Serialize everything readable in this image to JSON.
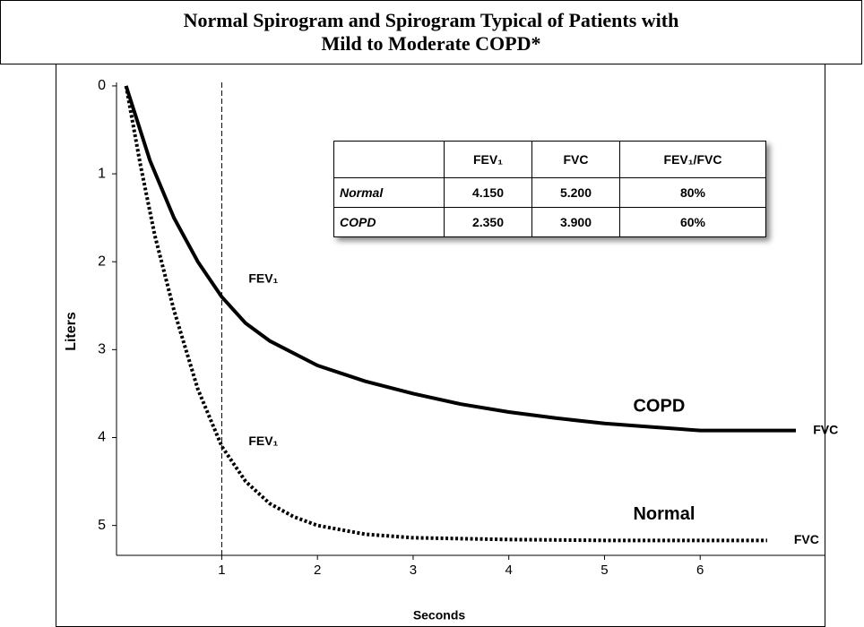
{
  "chart_data": {
    "type": "line",
    "title_lines": [
      "Normal Spirogram and Spirogram Typical of Patients with",
      "Mild to Moderate COPD*"
    ],
    "x_label": "Seconds",
    "y_label": "Liters",
    "xlim": [
      -0.1,
      7.3
    ],
    "ylim": [
      -0.04,
      5.34
    ],
    "y_inverted": true,
    "xticks": [
      1,
      2,
      3,
      4,
      5,
      6
    ],
    "yticks": [
      0,
      1,
      2,
      3,
      4,
      5
    ],
    "reference_line_x": 1,
    "series": [
      {
        "name": "COPD",
        "color": "#000000",
        "dash": "solid",
        "x": [
          0,
          0.25,
          0.5,
          0.75,
          1,
          1.25,
          1.5,
          2,
          2.5,
          3,
          3.5,
          4,
          4.5,
          5,
          5.5,
          6,
          7
        ],
        "values": [
          0,
          0.85,
          1.5,
          2.0,
          2.4,
          2.7,
          2.9,
          3.18,
          3.36,
          3.5,
          3.62,
          3.71,
          3.78,
          3.84,
          3.88,
          3.92,
          3.92
        ]
      },
      {
        "name": "Normal",
        "color": "#000000",
        "dash": "dotted",
        "x": [
          0,
          0.15,
          0.3,
          0.5,
          0.75,
          1,
          1.25,
          1.5,
          1.75,
          2,
          2.5,
          3,
          4,
          5,
          6,
          6.7
        ],
        "values": [
          0,
          0.9,
          1.7,
          2.55,
          3.45,
          4.1,
          4.5,
          4.75,
          4.9,
          5.0,
          5.1,
          5.14,
          5.16,
          5.17,
          5.17,
          5.17
        ]
      }
    ],
    "annotations": [
      {
        "text": "FEV₁",
        "x": 1.28,
        "y": 2.2
      },
      {
        "text": "FEV₁",
        "x": 1.28,
        "y": 4.05
      },
      {
        "text": "COPD",
        "x": 5.3,
        "y": 3.65
      },
      {
        "text": "Normal",
        "x": 5.3,
        "y": 4.88
      },
      {
        "text": "FVC",
        "x": 7.18,
        "y": 3.92
      },
      {
        "text": "FVC",
        "x": 6.98,
        "y": 5.17
      }
    ],
    "table": {
      "columns": [
        "FEV₁",
        "FVC",
        "FEV₁/FVC"
      ],
      "rows": [
        {
          "label": "Normal",
          "cells": [
            "4.150",
            "5.200",
            "80%"
          ]
        },
        {
          "label": "COPD",
          "cells": [
            "2.350",
            "3.900",
            "60%"
          ]
        }
      ]
    }
  }
}
